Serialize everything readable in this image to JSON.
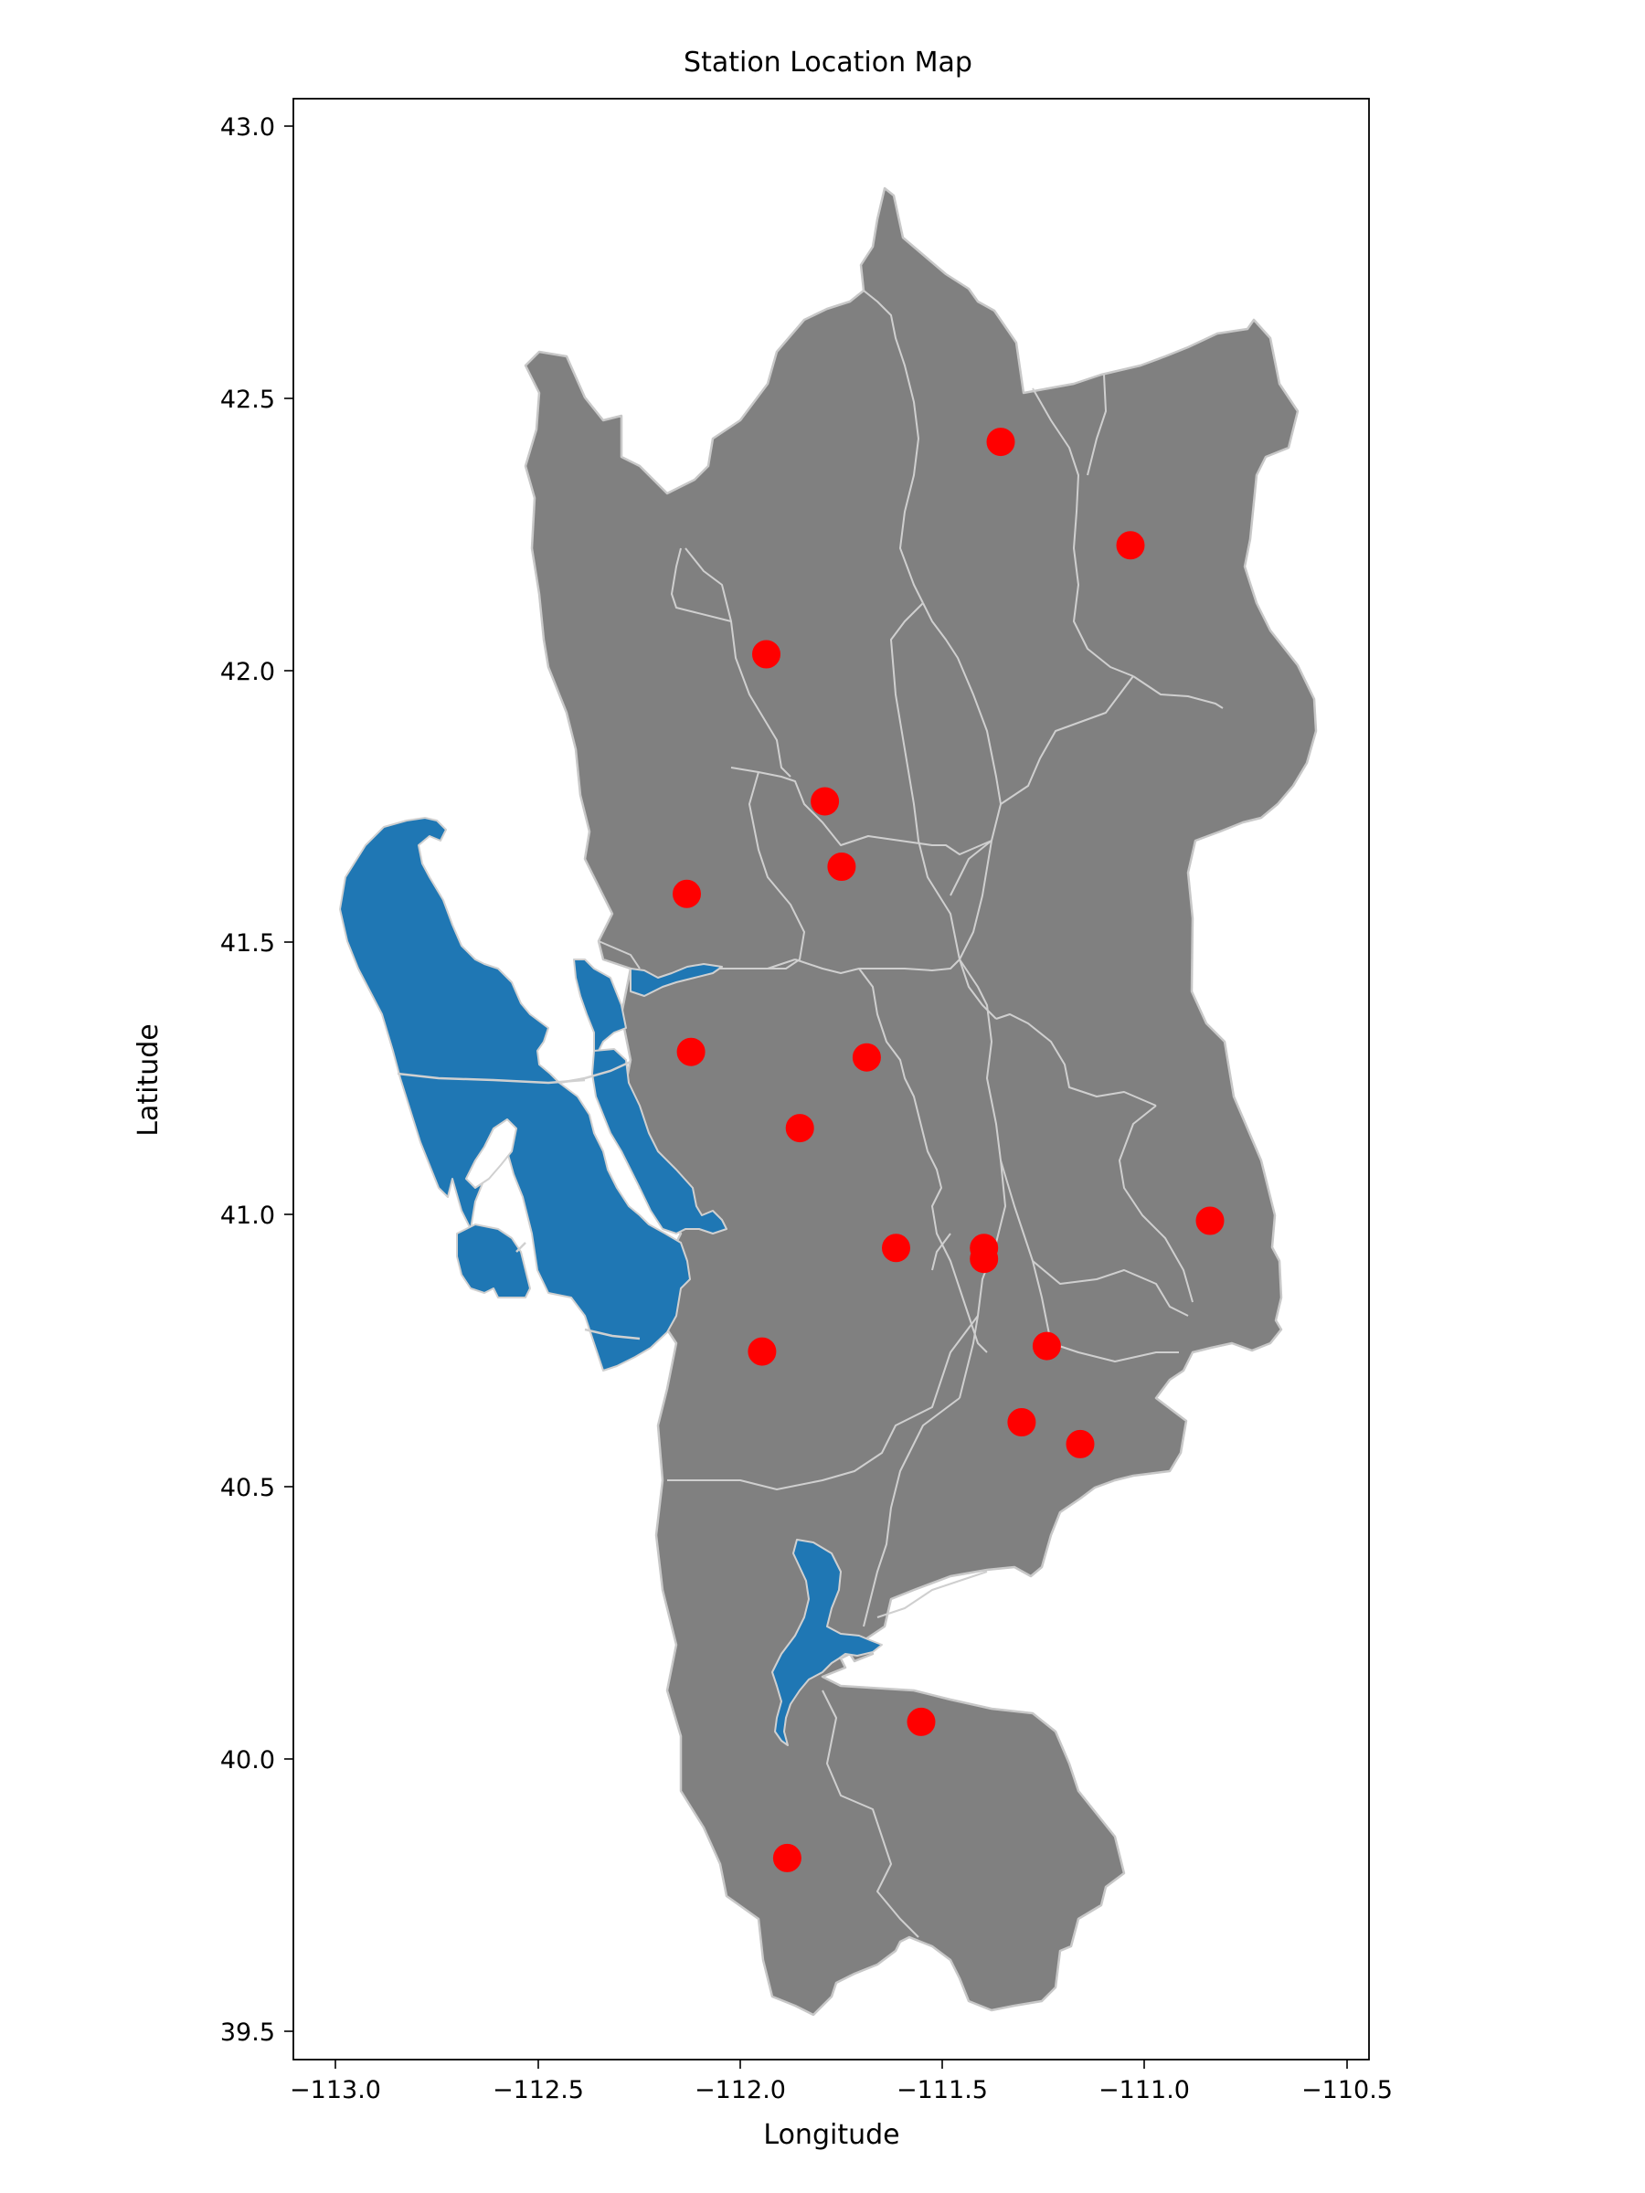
{
  "title": "Station Location Map",
  "xlabel": "Longitude",
  "ylabel": "Latitude",
  "xlim": [
    -113.05,
    -110.48
  ],
  "ylim": [
    39.43,
    43.03
  ],
  "xticks": [
    -113.0,
    -112.5,
    -112.0,
    -111.5,
    -111.0,
    -110.5
  ],
  "xtick_labels": [
    "−113.0",
    "−112.5",
    "−112.0",
    "−111.5",
    "−111.0",
    "−110.5"
  ],
  "yticks": [
    39.5,
    40.0,
    40.5,
    41.0,
    41.5,
    42.0,
    42.5,
    43.0
  ],
  "ytick_labels": [
    "39.5",
    "40.0",
    "40.5",
    "41.0",
    "41.5",
    "42.0",
    "42.5",
    "43.0"
  ],
  "colors": {
    "watershed_fill": "#808080",
    "watershed_edge": "#c8c8c8",
    "water_fill": "#1f77b4",
    "station": "#ff0000"
  },
  "chart_data": {
    "type": "scatter",
    "title": "Station Location Map",
    "xlabel": "Longitude",
    "ylabel": "Latitude",
    "xlim": [
      -113.05,
      -110.48
    ],
    "ylim": [
      39.43,
      43.03
    ],
    "grid": false,
    "points": [
      {
        "lon": -111.36,
        "lat": 42.4
      },
      {
        "lon": -111.05,
        "lat": 42.21
      },
      {
        "lon": -111.92,
        "lat": 42.01
      },
      {
        "lon": -111.78,
        "lat": 41.74
      },
      {
        "lon": -111.74,
        "lat": 41.62
      },
      {
        "lon": -112.11,
        "lat": 41.57
      },
      {
        "lon": -112.1,
        "lat": 41.28
      },
      {
        "lon": -111.68,
        "lat": 41.27
      },
      {
        "lon": -111.84,
        "lat": 41.14
      },
      {
        "lon": -111.61,
        "lat": 40.92
      },
      {
        "lon": -111.4,
        "lat": 40.92
      },
      {
        "lon": -111.4,
        "lat": 40.9
      },
      {
        "lon": -110.86,
        "lat": 40.97
      },
      {
        "lon": -111.25,
        "lat": 40.74
      },
      {
        "lon": -111.93,
        "lat": 40.73
      },
      {
        "lon": -111.31,
        "lat": 40.6
      },
      {
        "lon": -111.17,
        "lat": 40.56
      },
      {
        "lon": -111.55,
        "lat": 40.05
      },
      {
        "lon": -111.87,
        "lat": 39.8
      }
    ]
  }
}
